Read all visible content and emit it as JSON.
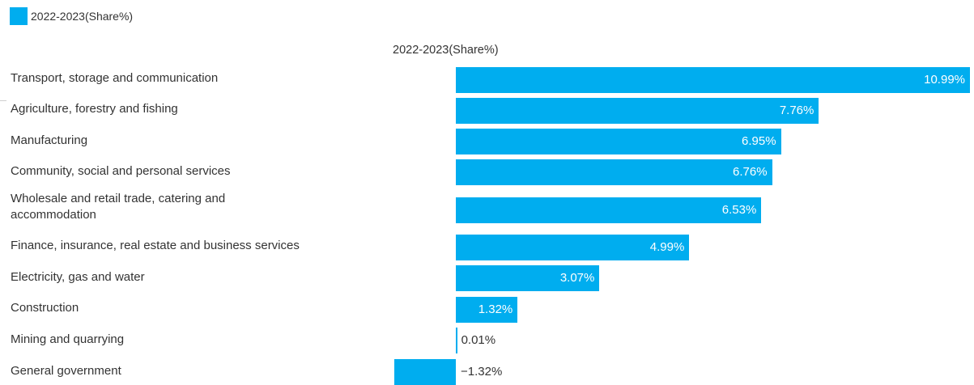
{
  "legend": {
    "label": "2022-2023(Share%)",
    "color": "#00adef"
  },
  "column_header": "2022-2023(Share%)",
  "chart_data": {
    "type": "bar",
    "orientation": "horizontal",
    "categories": [
      "Transport, storage and communication",
      "Agriculture, forestry and fishing",
      "Manufacturing",
      "Community, social and personal services",
      "Wholesale and retail trade, catering and accommodation",
      "Finance, insurance, real estate and business services",
      "Electricity, gas and water",
      "Construction",
      "Mining and quarrying",
      "General government"
    ],
    "series": [
      {
        "name": "2022-2023(Share%)",
        "values": [
          10.99,
          7.76,
          6.95,
          6.76,
          6.53,
          4.99,
          3.07,
          1.32,
          0.01,
          -1.32
        ],
        "labels": [
          "10.99%",
          "7.76%",
          "6.95%",
          "6.76%",
          "6.53%",
          "4.99%",
          "3.07%",
          "1.32%",
          "0.01%",
          "−1.32%"
        ],
        "color": "#00adef"
      }
    ],
    "xlim": [
      -1.32,
      10.99
    ],
    "legend_position": "top-left",
    "grid": false
  }
}
